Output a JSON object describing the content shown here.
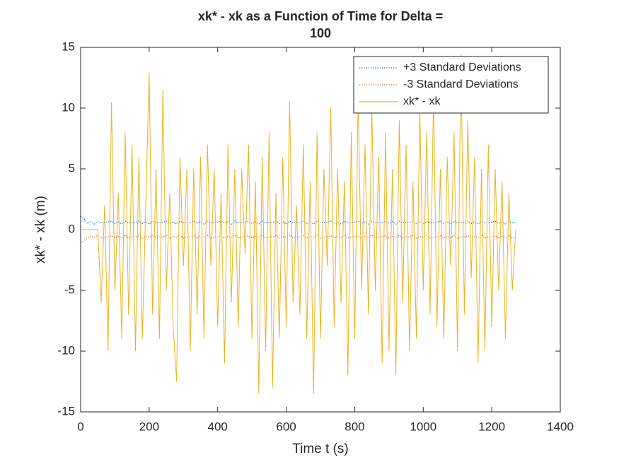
{
  "chart_data": {
    "type": "line",
    "title": [
      "xk* - xk as a Function of Time for Delta =",
      "100"
    ],
    "x_label": "Time t (s)",
    "y_label": "xk* - xk (m)",
    "xlim": [
      0,
      1400
    ],
    "ylim": [
      -15,
      15
    ],
    "xticks": [
      0,
      200,
      400,
      600,
      800,
      1000,
      1200,
      1400
    ],
    "yticks": [
      -15,
      -10,
      -5,
      0,
      5,
      10,
      15
    ],
    "legend": "top-right",
    "x": [
      0,
      10,
      20,
      30,
      40,
      50,
      60,
      70,
      80,
      90,
      100,
      110,
      120,
      130,
      140,
      150,
      160,
      170,
      180,
      190,
      200,
      210,
      220,
      230,
      240,
      250,
      260,
      270,
      280,
      290,
      300,
      310,
      320,
      330,
      340,
      350,
      360,
      370,
      380,
      390,
      400,
      410,
      420,
      430,
      440,
      450,
      460,
      470,
      480,
      490,
      500,
      510,
      520,
      530,
      540,
      550,
      560,
      570,
      580,
      590,
      600,
      610,
      620,
      630,
      640,
      650,
      660,
      670,
      680,
      690,
      700,
      710,
      720,
      730,
      740,
      750,
      760,
      770,
      780,
      790,
      800,
      810,
      820,
      830,
      840,
      850,
      860,
      870,
      880,
      890,
      900,
      910,
      920,
      930,
      940,
      950,
      960,
      970,
      980,
      990,
      1000,
      1010,
      1020,
      1030,
      1040,
      1050,
      1060,
      1070,
      1080,
      1090,
      1100,
      1110,
      1120,
      1130,
      1140,
      1150,
      1160,
      1170,
      1180,
      1190,
      1200,
      1210,
      1220,
      1230,
      1240,
      1250,
      1260,
      1270
    ],
    "series": [
      {
        "name": "+3 Standard Deviations",
        "color": "#0072BD",
        "style": "dotted",
        "values": [
          1.1,
          0.9,
          0.5,
          0.65,
          0.45,
          0.7,
          0.55,
          0.6,
          0.6,
          0.7,
          0.5,
          0.65,
          0.45,
          0.7,
          0.55,
          0.6,
          0.6,
          0.7,
          0.5,
          0.65,
          0.45,
          0.7,
          0.55,
          0.6,
          0.6,
          0.7,
          0.5,
          0.65,
          0.45,
          0.7,
          0.55,
          0.6,
          0.6,
          0.7,
          0.5,
          0.65,
          0.45,
          0.7,
          0.55,
          0.6,
          0.6,
          0.7,
          0.5,
          0.65,
          0.45,
          0.7,
          0.55,
          0.6,
          0.6,
          0.7,
          0.5,
          0.65,
          0.45,
          0.7,
          0.55,
          0.6,
          0.6,
          0.7,
          0.5,
          0.65,
          0.45,
          0.7,
          0.55,
          0.6,
          0.6,
          0.7,
          0.5,
          0.65,
          0.45,
          0.7,
          0.55,
          0.6,
          0.6,
          0.7,
          0.5,
          0.65,
          0.45,
          0.7,
          0.55,
          0.6,
          0.6,
          0.7,
          0.5,
          0.65,
          0.45,
          0.7,
          0.55,
          0.6,
          0.6,
          0.7,
          0.5,
          0.65,
          0.45,
          0.7,
          0.55,
          0.6,
          0.6,
          0.7,
          0.5,
          0.65,
          0.45,
          0.7,
          0.55,
          0.6,
          0.6,
          0.7,
          0.5,
          0.65,
          0.45,
          0.7,
          0.55,
          0.6,
          0.6,
          0.7,
          0.5,
          0.65,
          0.45,
          0.7,
          0.55,
          0.6,
          0.6,
          0.7,
          0.5,
          0.65,
          0.45,
          0.7,
          0.55,
          0.6
        ]
      },
      {
        "name": "-3 Standard Deviations",
        "color": "#D95319",
        "style": "dotted",
        "values": [
          -1.1,
          -0.9,
          -0.7,
          -0.55,
          -0.65,
          -0.45,
          -0.7,
          -0.6,
          -0.6,
          -0.5,
          -0.7,
          -0.55,
          -0.65,
          -0.45,
          -0.7,
          -0.6,
          -0.6,
          -0.5,
          -0.7,
          -0.55,
          -0.65,
          -0.45,
          -0.7,
          -0.6,
          -0.6,
          -0.5,
          -0.7,
          -0.55,
          -0.65,
          -0.45,
          -0.7,
          -0.6,
          -0.6,
          -0.5,
          -0.7,
          -0.55,
          -0.65,
          -0.45,
          -0.7,
          -0.6,
          -0.6,
          -0.5,
          -0.7,
          -0.55,
          -0.65,
          -0.45,
          -0.7,
          -0.6,
          -0.6,
          -0.5,
          -0.7,
          -0.55,
          -0.65,
          -0.45,
          -0.7,
          -0.6,
          -0.6,
          -0.5,
          -0.7,
          -0.55,
          -0.65,
          -0.45,
          -0.7,
          -0.6,
          -0.6,
          -0.5,
          -0.7,
          -0.55,
          -0.65,
          -0.45,
          -0.7,
          -0.6,
          -0.6,
          -0.5,
          -0.7,
          -0.55,
          -0.65,
          -0.45,
          -0.7,
          -0.6,
          -0.6,
          -0.5,
          -0.7,
          -0.55,
          -0.65,
          -0.45,
          -0.7,
          -0.6,
          -0.6,
          -0.5,
          -0.7,
          -0.55,
          -0.65,
          -0.45,
          -0.7,
          -0.6,
          -0.6,
          -0.5,
          -0.7,
          -0.55,
          -0.65,
          -0.45,
          -0.7,
          -0.6,
          -0.6,
          -0.5,
          -0.7,
          -0.55,
          -0.65,
          -0.45,
          -0.7,
          -0.6,
          -0.6,
          -0.5,
          -0.7,
          -0.55,
          -0.65,
          -0.45,
          -0.7,
          -0.6,
          -0.6,
          -0.5,
          -0.7,
          -0.55,
          -0.65,
          -0.45,
          -0.7,
          -0.6
        ]
      },
      {
        "name": "xk* - xk",
        "color": "#EDB120",
        "style": "solid",
        "values": [
          0,
          0,
          0,
          0,
          0,
          0,
          -6,
          2,
          -10,
          10.5,
          -5,
          3,
          -9,
          8,
          -7,
          7,
          -10,
          6,
          -9,
          2,
          13,
          -7,
          5,
          -9,
          11.5,
          -5,
          3,
          -8,
          -12.5,
          6,
          -3,
          5,
          -10,
          5,
          -7,
          6,
          -9,
          7,
          -3,
          5,
          -8,
          3,
          -11,
          7,
          -6,
          5,
          -8,
          5,
          -2,
          7,
          -9,
          4,
          -13.5,
          6,
          -10,
          8,
          -13,
          3,
          -9,
          6,
          -8,
          10.5,
          -6,
          2,
          -7,
          7,
          -9,
          4,
          -13.5,
          8,
          -9,
          5,
          -3,
          10,
          -8,
          5,
          -6,
          4,
          -12,
          8,
          -9,
          11,
          -5,
          7,
          -7,
          10,
          -5,
          6,
          -11,
          8,
          -10,
          5,
          -12,
          9,
          -6,
          7,
          -10,
          4,
          -9,
          10,
          -5,
          8,
          -7,
          11,
          -8,
          5,
          -9,
          6,
          -3,
          8,
          -10,
          14.5,
          -7,
          9,
          -4,
          6,
          -11,
          5,
          -10,
          7,
          -8,
          5,
          -5,
          4,
          -9,
          3,
          -5,
          0
        ]
      }
    ]
  }
}
